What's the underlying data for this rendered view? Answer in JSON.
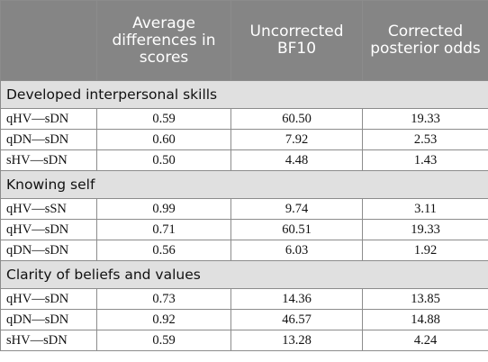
{
  "table": {
    "headers": [
      "",
      "Average differences in scores",
      "Uncorrected BF10",
      "Corrected posterior odds"
    ],
    "sections": [
      {
        "title": "Developed interpersonal skills",
        "rows": [
          {
            "label": "qHV—sDN",
            "avg": "0.59",
            "bf10": "60.50",
            "odds": "19.33"
          },
          {
            "label": "qDN—sDN",
            "avg": "0.60",
            "bf10": "7.92",
            "odds": "2.53"
          },
          {
            "label": "sHV—sDN",
            "avg": "0.50",
            "bf10": "4.48",
            "odds": "1.43"
          }
        ]
      },
      {
        "title": "Knowing self",
        "rows": [
          {
            "label": "qHV—sSN",
            "avg": "0.99",
            "bf10": "9.74",
            "odds": "3.11"
          },
          {
            "label": "qHV—sDN",
            "avg": "0.71",
            "bf10": "60.51",
            "odds": "19.33"
          },
          {
            "label": "qDN—sDN",
            "avg": "0.56",
            "bf10": "6.03",
            "odds": "1.92"
          }
        ]
      },
      {
        "title": "Clarity of beliefs and values",
        "rows": [
          {
            "label": "qHV—sDN",
            "avg": "0.73",
            "bf10": "14.36",
            "odds": "13.85"
          },
          {
            "label": "qDN—sDN",
            "avg": "0.92",
            "bf10": "46.57",
            "odds": "14.88"
          },
          {
            "label": "sHV—sDN",
            "avg": "0.59",
            "bf10": "13.28",
            "odds": "4.24"
          }
        ]
      }
    ]
  }
}
